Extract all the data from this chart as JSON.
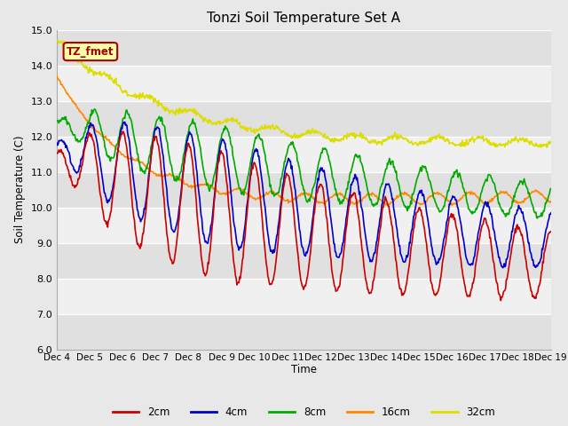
{
  "title": "Tonzi Soil Temperature Set A",
  "ylabel": "Soil Temperature (C)",
  "xlabel": "Time",
  "ylim": [
    6.0,
    15.0
  ],
  "yticks": [
    6.0,
    7.0,
    8.0,
    9.0,
    10.0,
    11.0,
    12.0,
    13.0,
    14.0,
    15.0
  ],
  "xlabels": [
    "Dec 4",
    "Dec 5",
    "Dec 6",
    "Dec 7",
    "Dec 8",
    "Dec 9",
    "Dec 10",
    "Dec 11",
    "Dec 12",
    "Dec 13",
    "Dec 14",
    "Dec 15",
    "Dec 16",
    "Dec 17",
    "Dec 18",
    "Dec 19"
  ],
  "colors": {
    "2cm": "#cc0000",
    "4cm": "#0000cc",
    "8cm": "#00aa00",
    "16cm": "#ff8800",
    "32cm": "#dddd00"
  },
  "label_box_color": "#ffffaa",
  "label_box_edge": "#aa0000",
  "label_text": "TZ_fmet",
  "bg_color": "#e8e8e8",
  "plot_bg_light": "#f0f0f0",
  "plot_bg_dark": "#e0e0e0"
}
